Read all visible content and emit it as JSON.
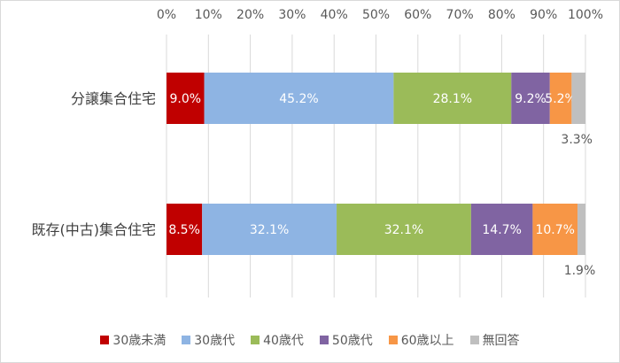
{
  "chart_data": {
    "type": "bar",
    "orientation": "horizontal",
    "stacked": true,
    "percent": true,
    "x_ticks": [
      "0%",
      "10%",
      "20%",
      "30%",
      "40%",
      "50%",
      "60%",
      "70%",
      "80%",
      "90%",
      "100%"
    ],
    "xlim": [
      0,
      100
    ],
    "grid": true,
    "legend_position": "bottom",
    "categories": [
      "分譲集合住宅",
      "既存(中古)集合住宅"
    ],
    "series": [
      {
        "name": "30歳未満",
        "color": "#c00000",
        "values": [
          9.0,
          8.5
        ],
        "labels": [
          "9.0%",
          "8.5%"
        ]
      },
      {
        "name": "30歳代",
        "color": "#8eb4e3",
        "values": [
          45.2,
          32.1
        ],
        "labels": [
          "45.2%",
          "32.1%"
        ]
      },
      {
        "name": "40歳代",
        "color": "#9bbb59",
        "values": [
          28.1,
          32.1
        ],
        "labels": [
          "28.1%",
          "32.1%"
        ]
      },
      {
        "name": "50歳代",
        "color": "#8064a2",
        "values": [
          9.2,
          14.7
        ],
        "labels": [
          "9.2%",
          "14.7%"
        ]
      },
      {
        "name": "60歳以上",
        "color": "#f79646",
        "values": [
          5.2,
          10.7
        ],
        "labels": [
          "5.2%",
          "10.7%"
        ]
      },
      {
        "name": "無回答",
        "color": "#bfbfbf",
        "values": [
          3.3,
          1.9
        ],
        "labels": [
          "3.3%",
          "1.9%"
        ],
        "label_outside": true
      }
    ]
  }
}
